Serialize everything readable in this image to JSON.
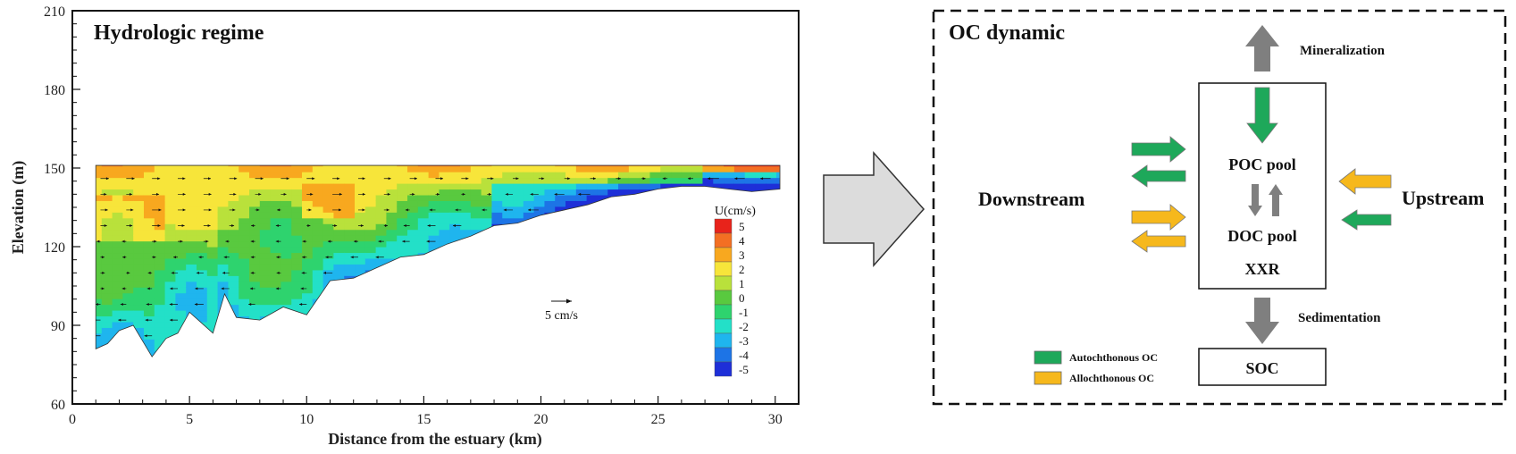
{
  "left_panel": {
    "title": "Hydrologic regime",
    "x_axis_label": "Distance from the estuary (km)",
    "y_axis_label": "Elevation (m)",
    "x_ticks": [
      "0",
      "5",
      "10",
      "15",
      "20",
      "25",
      "30"
    ],
    "y_ticks": [
      "210",
      "180",
      "150",
      "120",
      "90",
      "60"
    ],
    "scale_label": "5 cm/s",
    "colorbar": {
      "title": "U(cm/s)",
      "labels": [
        "5",
        "4",
        "3",
        "2",
        "1",
        "0",
        "-1",
        "-2",
        "-3",
        "-4",
        "-5"
      ],
      "colors": [
        "#e8231b",
        "#f36f23",
        "#f8a81f",
        "#f7e53a",
        "#b9e13b",
        "#59c93f",
        "#2ed36e",
        "#23e0c8",
        "#1fb5ee",
        "#1d74e6",
        "#1e2fd8"
      ]
    }
  },
  "chart_data": {
    "type": "heatmap",
    "title": "Hydrologic regime",
    "xlabel": "Distance from the estuary (km)",
    "ylabel": "Elevation (m)",
    "xlim": [
      0,
      31
    ],
    "ylim": [
      60,
      210
    ],
    "colorbar_title": "U(cm/s)",
    "colorbar_range": [
      -5,
      5
    ],
    "surface_elevation": 151,
    "bed_profile": [
      [
        1,
        81
      ],
      [
        1.5,
        83
      ],
      [
        2,
        88
      ],
      [
        2.6,
        90
      ],
      [
        3.4,
        78
      ],
      [
        4,
        85
      ],
      [
        4.5,
        87
      ],
      [
        5,
        95
      ],
      [
        5.5,
        91
      ],
      [
        6,
        87
      ],
      [
        6.5,
        102
      ],
      [
        7,
        93
      ],
      [
        8,
        92
      ],
      [
        9,
        97
      ],
      [
        10,
        94
      ],
      [
        11,
        107
      ],
      [
        12,
        108
      ],
      [
        13,
        112
      ],
      [
        14,
        116
      ],
      [
        15,
        117
      ],
      [
        16,
        121
      ],
      [
        17,
        124
      ],
      [
        18,
        128
      ],
      [
        19,
        129
      ],
      [
        20,
        132
      ],
      [
        21,
        134
      ],
      [
        22,
        136
      ],
      [
        23,
        139
      ],
      [
        24,
        140
      ],
      [
        25,
        142
      ],
      [
        26,
        143
      ],
      [
        27,
        143
      ],
      [
        28,
        142
      ],
      [
        29,
        141
      ],
      [
        30.2,
        142
      ]
    ],
    "scale_arrow_label": "5 cm/s"
  },
  "right_panel": {
    "title": "OC dynamic",
    "transition_arrow_icon": "right-arrow-icon",
    "labels": {
      "mineralization": "Mineralization",
      "sedimentation": "Sedimentation",
      "downstream": "Downstream",
      "upstream": "Upstream",
      "poc_pool": "POC pool",
      "doc_pool": "DOC pool",
      "xxr": "XXR",
      "soc": "SOC"
    },
    "legend": [
      {
        "label": "Autochthonous OC",
        "color": "#1ea85a"
      },
      {
        "label": "Allochthonous OC",
        "color": "#f6b81c"
      }
    ],
    "colors": {
      "autochthonous": "#1ea85a",
      "allochthonous": "#f6b81c",
      "process_arrow": "#7f7f7f"
    }
  }
}
